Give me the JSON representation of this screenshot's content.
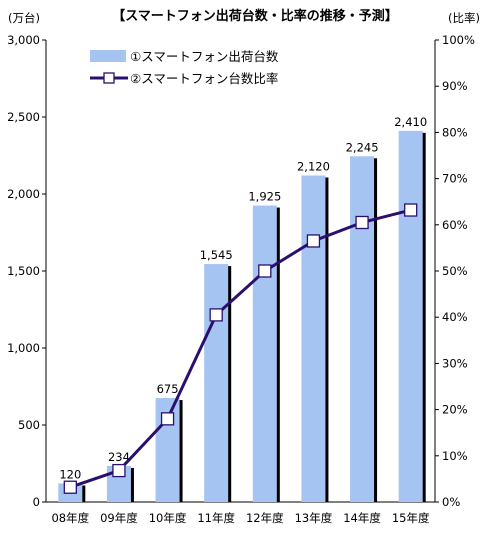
{
  "chart_data": {
    "type": "bar+line",
    "title": "【スマートフォン出荷台数・比率の推移・予測】",
    "categories": [
      "08年度",
      "09年度",
      "10年度",
      "11年度",
      "12年度",
      "13年度",
      "14年度",
      "15年度"
    ],
    "series": [
      {
        "name": "①スマートフォン出荷台数",
        "type": "bar",
        "axis": "left",
        "values": [
          120,
          234,
          675,
          1545,
          1925,
          2120,
          2245,
          2410
        ],
        "labels": [
          "120",
          "234",
          "675",
          "1,545",
          "1,925",
          "2,120",
          "2,245",
          "2,410"
        ],
        "color": "#a6c4f2"
      },
      {
        "name": "②スマートフォン台数比率",
        "type": "line",
        "axis": "right",
        "values": [
          3.2,
          6.8,
          18.0,
          40.5,
          50.0,
          56.5,
          60.5,
          63.2
        ],
        "color": "#2a0f6e"
      }
    ],
    "left_axis": {
      "unit": "(万台)",
      "range": [
        0,
        3000
      ],
      "ticks": [
        "0",
        "500",
        "1,000",
        "1,500",
        "2,000",
        "2,500",
        "3,000"
      ]
    },
    "right_axis": {
      "unit": "(比率)",
      "range": [
        0,
        100
      ],
      "ticks": [
        "0%",
        "10%",
        "20%",
        "30%",
        "40%",
        "50%",
        "60%",
        "70%",
        "80%",
        "90%",
        "100%"
      ]
    },
    "legend_position": "top-left",
    "grid": false
  }
}
